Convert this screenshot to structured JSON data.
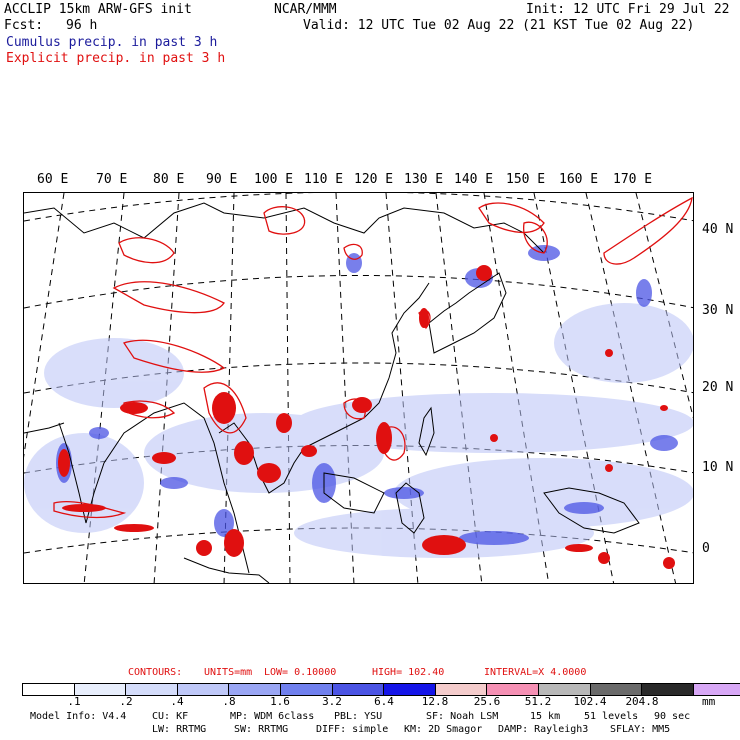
{
  "header": {
    "model_line": "ACCLIP 15km ARW-GFS init",
    "org": "NCAR/MMM",
    "init": "Init: 12 UTC Fri 29 Jul 22",
    "fcst_label": "Fcst:",
    "fcst_value": "96 h",
    "valid": "Valid: 12 UTC Tue 02 Aug 22 (21 KST Tue 02 Aug 22)",
    "cumulus": "Cumulus precip. in past 3 h",
    "explicit": "Explicit precip. in past 3 h"
  },
  "map": {
    "longitudes": [
      "60 E",
      "70 E",
      "80 E",
      "90 E",
      "100 E",
      "110 E",
      "120 E",
      "130 E",
      "140 E",
      "150 E",
      "160 E",
      "170 E"
    ],
    "latitudes": [
      "40 N",
      "30 N",
      "20 N",
      "10 N",
      "0"
    ]
  },
  "contours": {
    "label": "CONTOURS:",
    "units": "UNITS=mm",
    "low": "LOW= 0.10000",
    "high": "HIGH= 102.40",
    "interval": "INTERVAL=X 4.0000"
  },
  "legend": {
    "colors": [
      "#ffffff",
      "#e8eefc",
      "#d4dcfa",
      "#bfc8f8",
      "#9aa6f4",
      "#7080ee",
      "#4b54e4",
      "#1414e8",
      "#f4cccc",
      "#f590b4",
      "#b8b8b8",
      "#6a6a6a",
      "#2a2a2a",
      "#d8a8f6"
    ],
    "ticks": [
      ".1",
      ".2",
      ".4",
      ".8",
      "1.6",
      "3.2",
      "6.4",
      "12.8",
      "25.6",
      "51.2",
      "102.4",
      "204.8"
    ],
    "unit": "mm"
  },
  "footer": {
    "line1": [
      "Model Info: V4.4",
      "CU: KF",
      "MP: WDM 6class",
      "PBL: YSU",
      "SF: Noah LSM",
      "15 km",
      "51 levels",
      "90 sec"
    ],
    "line2": [
      "LW: RRTMG",
      "SW: RRTMG",
      "DIFF: simple",
      "KM: 2D Smagor",
      "DAMP: Rayleigh3",
      "SFLAY: MM5"
    ]
  }
}
